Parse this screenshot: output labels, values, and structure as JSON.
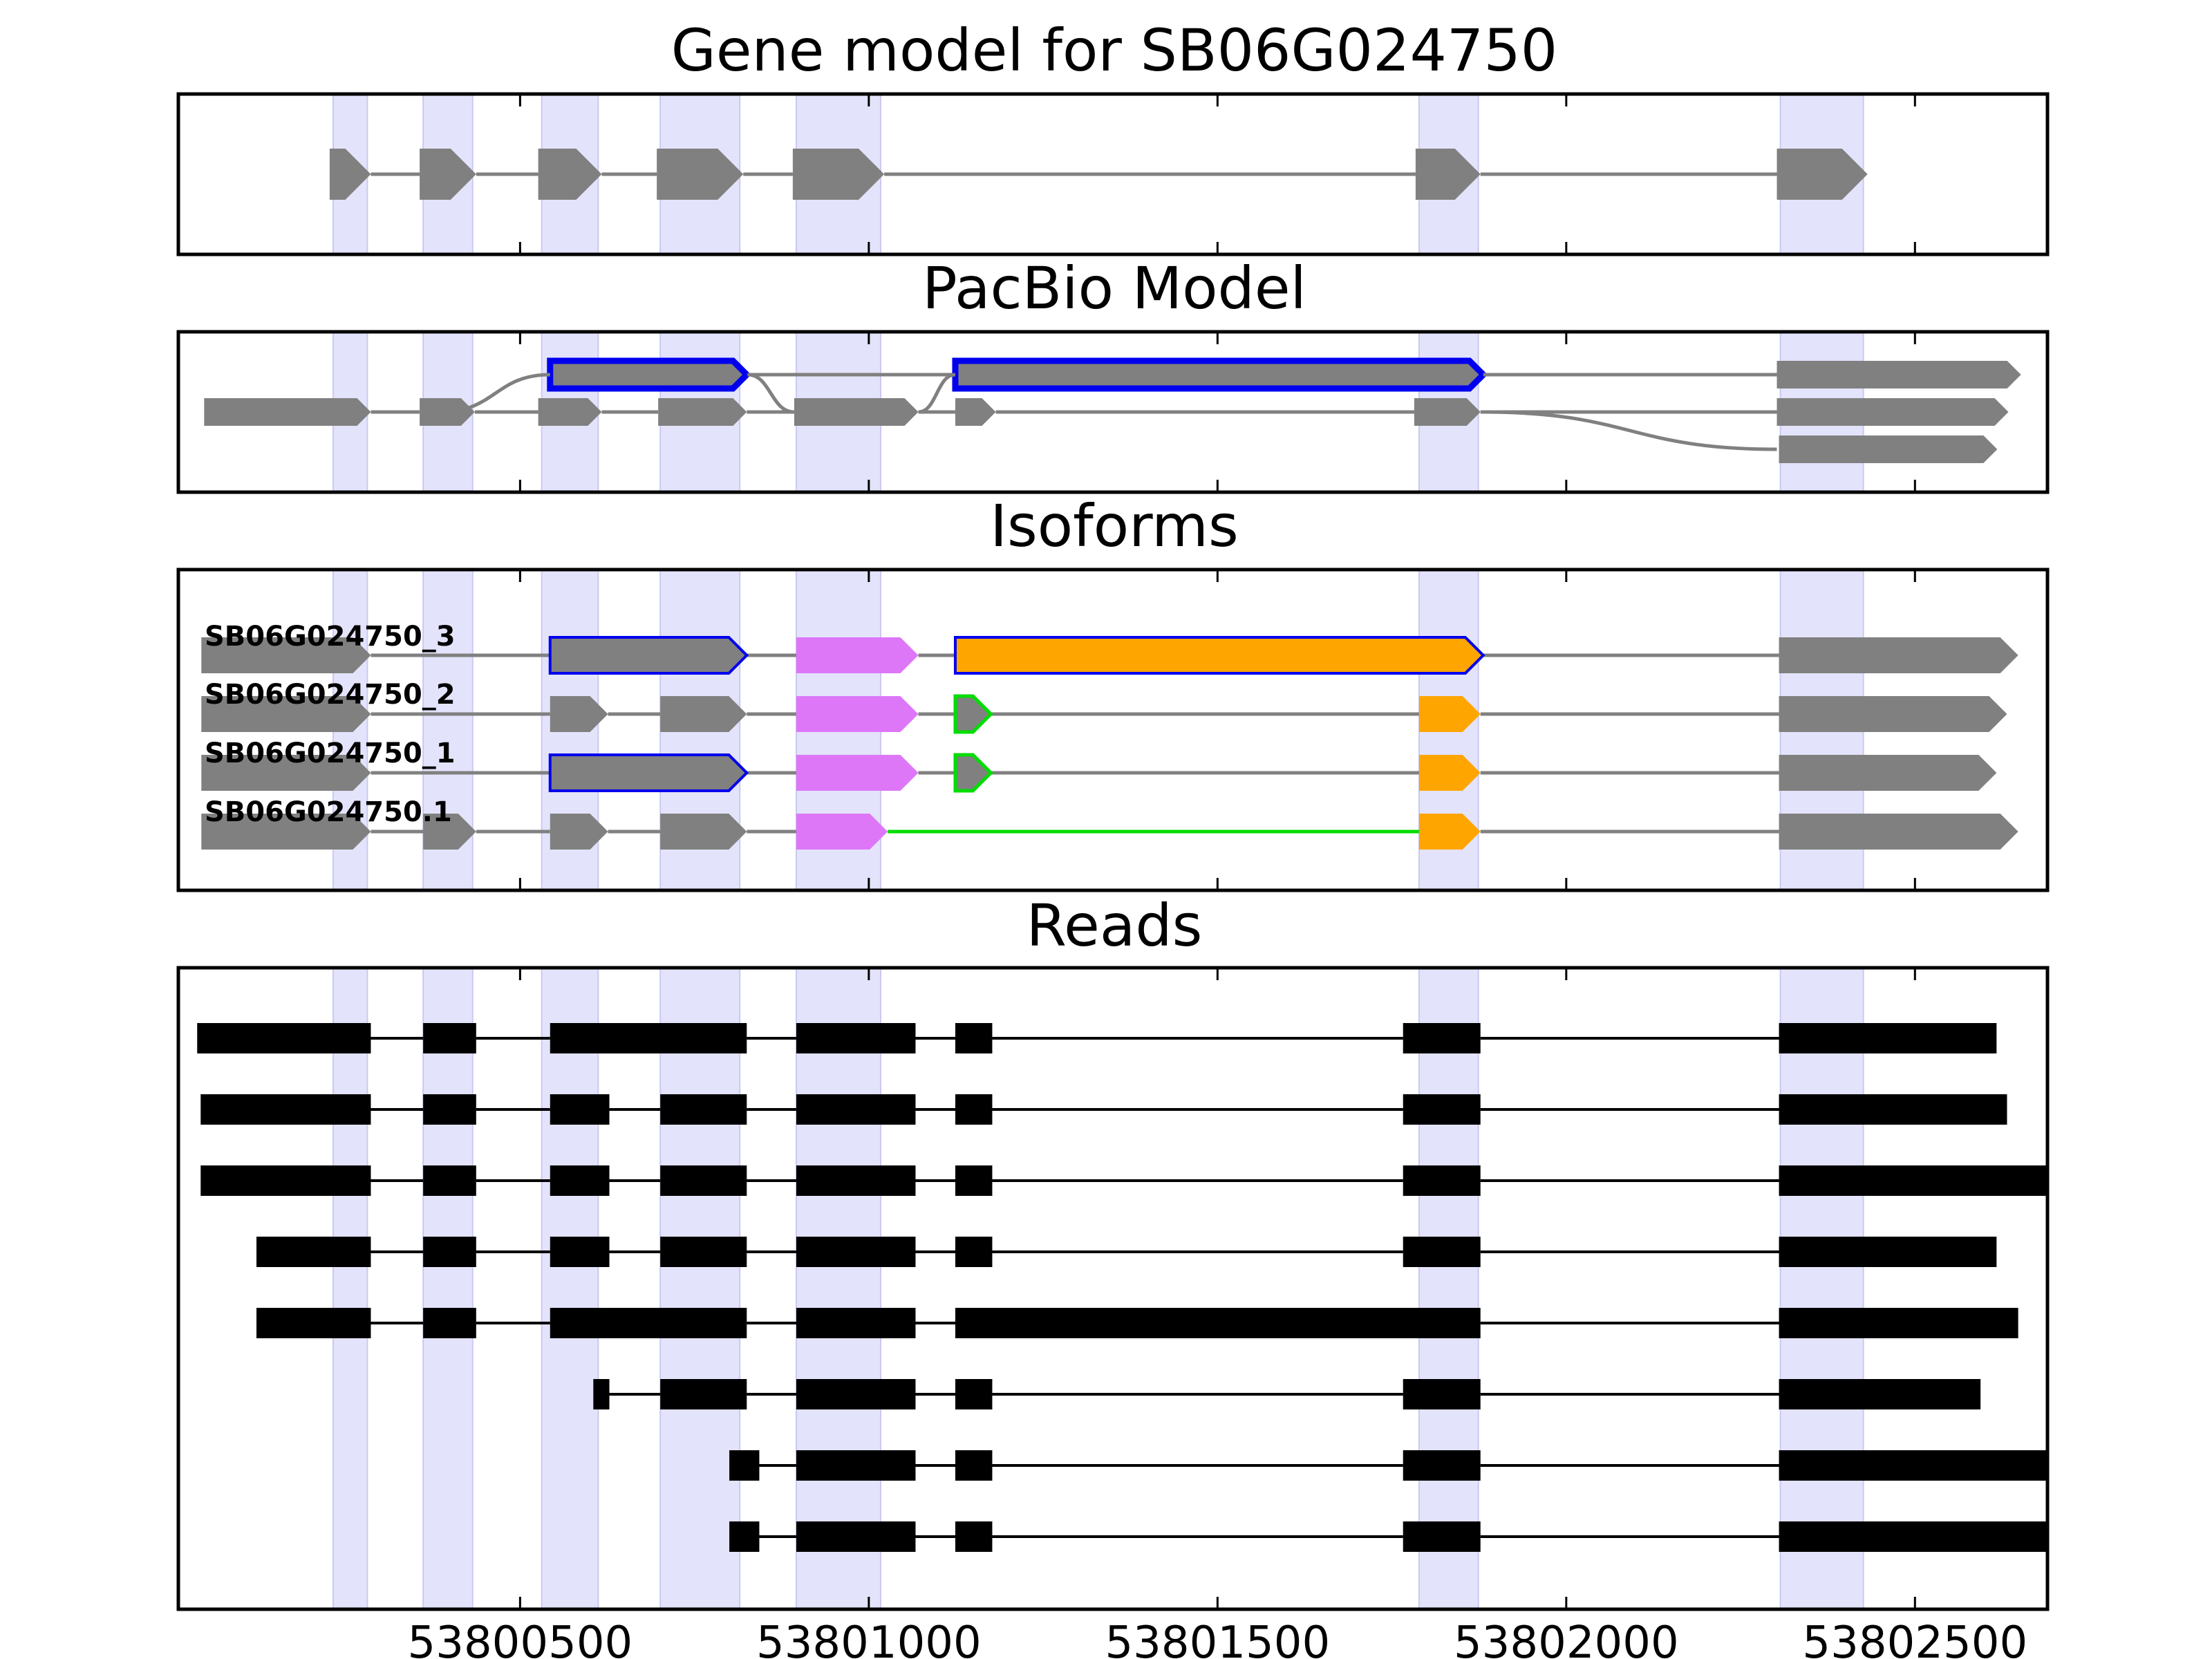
{
  "colors": {
    "exon": "#808080",
    "intron": "#808080",
    "band": "#e3e3fb",
    "band_edge": "#c9c9f2",
    "highlight_blue": "#0000ee",
    "highlight_green": "#00dd00",
    "violet": "#dd77f7",
    "orange": "#ffa500",
    "read": "#000000"
  },
  "chart_data": {
    "type": "gene-structure",
    "x_axis": {
      "range": [
        53800010,
        53802690
      ],
      "ticks": [
        {
          "value": 53800500,
          "label": "53800500"
        },
        {
          "value": 53801000,
          "label": "53801000"
        },
        {
          "value": 53801500,
          "label": "53801500"
        },
        {
          "value": 53802000,
          "label": "53802000"
        },
        {
          "value": 53802500,
          "label": "53802500"
        }
      ]
    },
    "exon_bands": [
      [
        53800232,
        53800281
      ],
      [
        53800361,
        53800432
      ],
      [
        53800531,
        53800612
      ],
      [
        53800701,
        53800815
      ],
      [
        53800896,
        53801017
      ],
      [
        53801789,
        53801874
      ],
      [
        53802307,
        53802426
      ]
    ],
    "panels": [
      {
        "id": "gene-model",
        "title": "Gene model for SB06G024750",
        "tracks": [
          {
            "row": 0,
            "exons": [
              [
                53800227,
                53800286
              ],
              [
                53800356,
                53800437
              ],
              [
                53800526,
                53800617
              ],
              [
                53800696,
                53800820
              ],
              [
                53800891,
                53801022
              ],
              [
                53801784,
                53801877
              ],
              [
                53802302,
                53802432
              ]
            ]
          }
        ]
      },
      {
        "id": "pacbio-model",
        "title": "PacBio Model",
        "tracks": [
          {
            "row": 0,
            "exons": [
              [
                53800543,
                53800825,
                "blue-outline"
              ],
              [
                53801124,
                53801881,
                "blue-outline"
              ],
              [
                53802302,
                53802652
              ]
            ]
          },
          {
            "row": 1,
            "exons": [
              [
                53800047,
                53800286
              ],
              [
                53800356,
                53800435
              ],
              [
                53800526,
                53800617
              ],
              [
                53800698,
                53800825
              ],
              [
                53800893,
                53801071
              ],
              [
                53801124,
                53801182
              ],
              [
                53801782,
                53801877
              ]
            ]
          },
          {
            "row": 1,
            "exons": [
              [
                53802302,
                53802634
              ]
            ]
          },
          {
            "row": 2,
            "exons": [
              [
                53802305,
                53802618
              ]
            ]
          }
        ],
        "links": [
          {
            "from": [
              53800386,
              1
            ],
            "to": [
              53800543,
              0
            ]
          },
          {
            "from": [
              53800826,
              0
            ],
            "to": [
              53800893,
              1
            ]
          },
          {
            "from": [
              53801071,
              1
            ],
            "to": [
              53801124,
              0
            ]
          },
          {
            "from": [
              53801881,
              1
            ],
            "to": [
              53802302,
              2
            ]
          }
        ]
      },
      {
        "id": "isoforms",
        "title": "Isoforms",
        "tracks": [
          {
            "row": 0,
            "label": "SB06G024750_3",
            "exons": [
              [
                53800043,
                53800286,
                "grey"
              ],
              [
                53800543,
                53800825,
                "blue-outline"
              ],
              [
                53800896,
                53801071,
                "violet"
              ],
              [
                53801124,
                53801881,
                "orange-blue"
              ],
              [
                53802305,
                53802648,
                "grey"
              ]
            ]
          },
          {
            "row": 1,
            "label": "SB06G024750_2",
            "exons": [
              [
                53800043,
                53800286,
                "grey"
              ],
              [
                53800543,
                53800626,
                "grey"
              ],
              [
                53800701,
                53800825,
                "grey"
              ],
              [
                53800896,
                53801071,
                "violet"
              ],
              [
                53801124,
                53801175,
                "green-outline"
              ],
              [
                53801789,
                53801877,
                "orange"
              ],
              [
                53802305,
                53802632,
                "grey"
              ]
            ]
          },
          {
            "row": 2,
            "label": "SB06G024750_1",
            "exons": [
              [
                53800043,
                53800286,
                "grey"
              ],
              [
                53800543,
                53800825,
                "blue-outline"
              ],
              [
                53800896,
                53801071,
                "violet"
              ],
              [
                53801124,
                53801175,
                "green-outline"
              ],
              [
                53801789,
                53801877,
                "orange"
              ],
              [
                53802305,
                53802617,
                "grey"
              ]
            ]
          },
          {
            "row": 3,
            "label": "SB06G024750.1",
            "exons": [
              [
                53800043,
                53800286,
                "grey"
              ],
              [
                53800361,
                53800437,
                "grey"
              ],
              [
                53800543,
                53800626,
                "grey"
              ],
              [
                53800701,
                53800825,
                "grey"
              ],
              [
                53800896,
                53801027,
                "violet"
              ],
              [
                53801789,
                53801877,
                "orange"
              ],
              [
                53802305,
                53802648,
                "grey"
              ]
            ],
            "green_intron": [
              53801027,
              53801789
            ]
          }
        ]
      },
      {
        "id": "reads",
        "title": "Reads",
        "tracks": [
          {
            "row": 0,
            "exons": [
              [
                53800037,
                53800286
              ],
              [
                53800361,
                53800437
              ],
              [
                53800543,
                53800825
              ],
              [
                53800896,
                53801067
              ],
              [
                53801124,
                53801177
              ],
              [
                53801766,
                53801877
              ],
              [
                53802305,
                53802617
              ]
            ]
          },
          {
            "row": 1,
            "exons": [
              [
                53800042,
                53800286
              ],
              [
                53800361,
                53800437
              ],
              [
                53800543,
                53800628
              ],
              [
                53800701,
                53800825
              ],
              [
                53800896,
                53801067
              ],
              [
                53801124,
                53801177
              ],
              [
                53801766,
                53801877
              ],
              [
                53802305,
                53802632
              ]
            ]
          },
          {
            "row": 2,
            "exons": [
              [
                53800042,
                53800286
              ],
              [
                53800361,
                53800437
              ],
              [
                53800543,
                53800628
              ],
              [
                53800701,
                53800825
              ],
              [
                53800896,
                53801067
              ],
              [
                53801124,
                53801177
              ],
              [
                53801766,
                53801877
              ],
              [
                53802305,
                53802690
              ]
            ]
          },
          {
            "row": 3,
            "exons": [
              [
                53800122,
                53800286
              ],
              [
                53800361,
                53800437
              ],
              [
                53800543,
                53800628
              ],
              [
                53800701,
                53800825
              ],
              [
                53800896,
                53801067
              ],
              [
                53801124,
                53801177
              ],
              [
                53801766,
                53801877
              ],
              [
                53802305,
                53802617
              ]
            ]
          },
          {
            "row": 4,
            "exons": [
              [
                53800122,
                53800286
              ],
              [
                53800361,
                53800437
              ],
              [
                53800543,
                53800825
              ],
              [
                53800896,
                53801067
              ],
              [
                53801124,
                53801877
              ],
              [
                53802305,
                53802648
              ]
            ]
          },
          {
            "row": 5,
            "exons": [
              [
                53800605,
                53800628
              ],
              [
                53800701,
                53800825
              ],
              [
                53800896,
                53801067
              ],
              [
                53801124,
                53801177
              ],
              [
                53801766,
                53801877
              ],
              [
                53802305,
                53802594
              ]
            ]
          },
          {
            "row": 6,
            "exons": [
              [
                53800800,
                53800843
              ],
              [
                53800896,
                53801067
              ],
              [
                53801124,
                53801177
              ],
              [
                53801766,
                53801877
              ],
              [
                53802305,
                53802690
              ]
            ]
          },
          {
            "row": 7,
            "exons": [
              [
                53800800,
                53800843
              ],
              [
                53800896,
                53801067
              ],
              [
                53801124,
                53801177
              ],
              [
                53801766,
                53801877
              ],
              [
                53802305,
                53802690
              ]
            ]
          }
        ]
      }
    ]
  }
}
